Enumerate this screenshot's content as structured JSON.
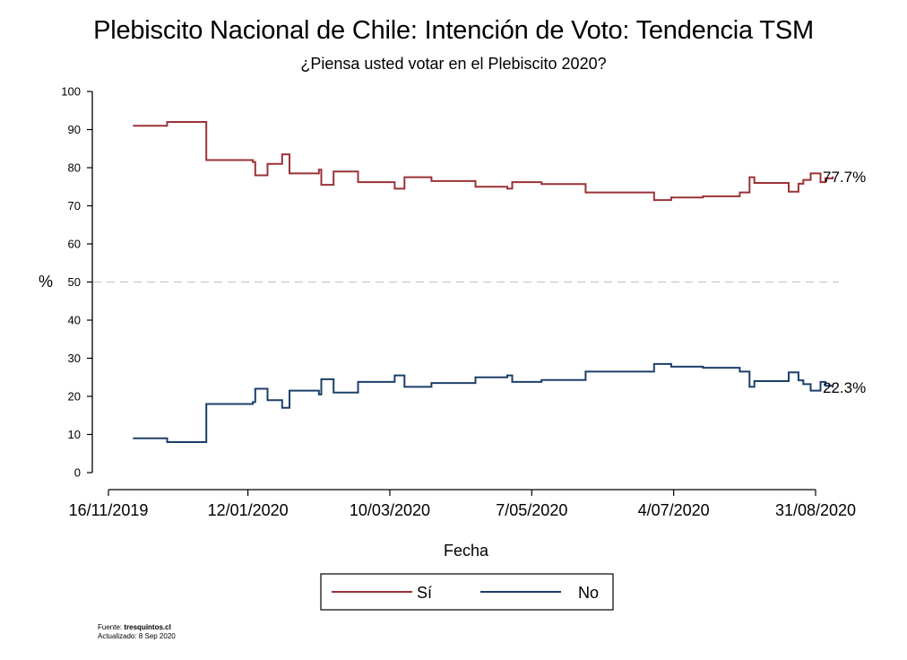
{
  "title": "Plebiscito Nacional de Chile: Intención de Voto: Tendencia TSM",
  "subtitle": "¿Piensa usted votar en el Plebiscito 2020?",
  "footer": {
    "source_label": "Fuente:",
    "source_name": "tresquintos.cl",
    "updated": "Actualizado: 8 Sep 2020"
  },
  "chart_data": {
    "type": "line",
    "step": true,
    "xlabel": "Fecha",
    "ylabel": "%",
    "ylim": [
      0,
      100
    ],
    "yticks": [
      0,
      10,
      20,
      30,
      40,
      50,
      60,
      70,
      80,
      90,
      100
    ],
    "xlim": [
      "2019-11-16",
      "2020-08-31"
    ],
    "xticks": [
      {
        "date": "2019-11-16",
        "label": "16/11/2019"
      },
      {
        "date": "2020-01-12",
        "label": "12/01/2020"
      },
      {
        "date": "2020-03-10",
        "label": "10/03/2020"
      },
      {
        "date": "2020-05-07",
        "label": "7/05/2020"
      },
      {
        "date": "2020-07-04",
        "label": "4/07/2020"
      },
      {
        "date": "2020-08-31",
        "label": "31/08/2020"
      }
    ],
    "reference_line": {
      "y": 50,
      "style": "dashed",
      "color": "#c8c8c8"
    },
    "legend_position": "bottom",
    "grid": false,
    "end_labels": [
      "77.7%",
      "22.3%"
    ],
    "series": [
      {
        "name": "Sí",
        "color": "#9b3237",
        "points": [
          [
            "2019-11-26",
            91
          ],
          [
            "2019-12-10",
            92
          ],
          [
            "2019-12-26",
            82
          ],
          [
            "2020-01-14",
            81.5
          ],
          [
            "2020-01-15",
            78
          ],
          [
            "2020-01-20",
            81
          ],
          [
            "2020-01-26",
            83.5
          ],
          [
            "2020-01-29",
            78.5
          ],
          [
            "2020-02-10",
            79.5
          ],
          [
            "2020-02-11",
            75.5
          ],
          [
            "2020-02-16",
            79
          ],
          [
            "2020-02-26",
            76.2
          ],
          [
            "2020-03-12",
            74.5
          ],
          [
            "2020-03-16",
            77.5
          ],
          [
            "2020-03-27",
            76.5
          ],
          [
            "2020-04-14",
            75
          ],
          [
            "2020-04-27",
            74.5
          ],
          [
            "2020-04-29",
            76.2
          ],
          [
            "2020-05-11",
            75.7
          ],
          [
            "2020-05-29",
            73.5
          ],
          [
            "2020-06-18",
            73.5
          ],
          [
            "2020-06-26",
            71.5
          ],
          [
            "2020-07-03",
            72.2
          ],
          [
            "2020-07-16",
            72.5
          ],
          [
            "2020-07-31",
            73.5
          ],
          [
            "2020-08-04",
            77.5
          ],
          [
            "2020-08-06",
            76
          ],
          [
            "2020-08-20",
            73.7
          ],
          [
            "2020-08-24",
            75.8
          ],
          [
            "2020-08-26",
            76.8
          ],
          [
            "2020-08-29",
            78.5
          ],
          [
            "2020-09-02",
            76.2
          ],
          [
            "2020-09-04",
            77.2
          ],
          [
            "2020-09-07",
            77.7
          ]
        ]
      },
      {
        "name": "No",
        "color": "#1c3f69",
        "points": [
          [
            "2019-11-26",
            9
          ],
          [
            "2019-12-10",
            8
          ],
          [
            "2019-12-26",
            18
          ],
          [
            "2020-01-14",
            18.5
          ],
          [
            "2020-01-15",
            22
          ],
          [
            "2020-01-20",
            19
          ],
          [
            "2020-01-26",
            17
          ],
          [
            "2020-01-29",
            21.5
          ],
          [
            "2020-02-10",
            20.5
          ],
          [
            "2020-02-11",
            24.5
          ],
          [
            "2020-02-16",
            21
          ],
          [
            "2020-02-26",
            23.8
          ],
          [
            "2020-03-12",
            25.5
          ],
          [
            "2020-03-16",
            22.5
          ],
          [
            "2020-03-27",
            23.5
          ],
          [
            "2020-04-14",
            25
          ],
          [
            "2020-04-27",
            25.5
          ],
          [
            "2020-04-29",
            23.8
          ],
          [
            "2020-05-11",
            24.3
          ],
          [
            "2020-05-29",
            26.5
          ],
          [
            "2020-06-18",
            26.5
          ],
          [
            "2020-06-26",
            28.5
          ],
          [
            "2020-07-03",
            27.8
          ],
          [
            "2020-07-16",
            27.5
          ],
          [
            "2020-07-31",
            26.5
          ],
          [
            "2020-08-04",
            22.5
          ],
          [
            "2020-08-06",
            24
          ],
          [
            "2020-08-20",
            26.3
          ],
          [
            "2020-08-24",
            24.2
          ],
          [
            "2020-08-26",
            23.2
          ],
          [
            "2020-08-29",
            21.5
          ],
          [
            "2020-09-02",
            23.8
          ],
          [
            "2020-09-04",
            22.8
          ],
          [
            "2020-09-07",
            22.3
          ]
        ]
      }
    ]
  }
}
